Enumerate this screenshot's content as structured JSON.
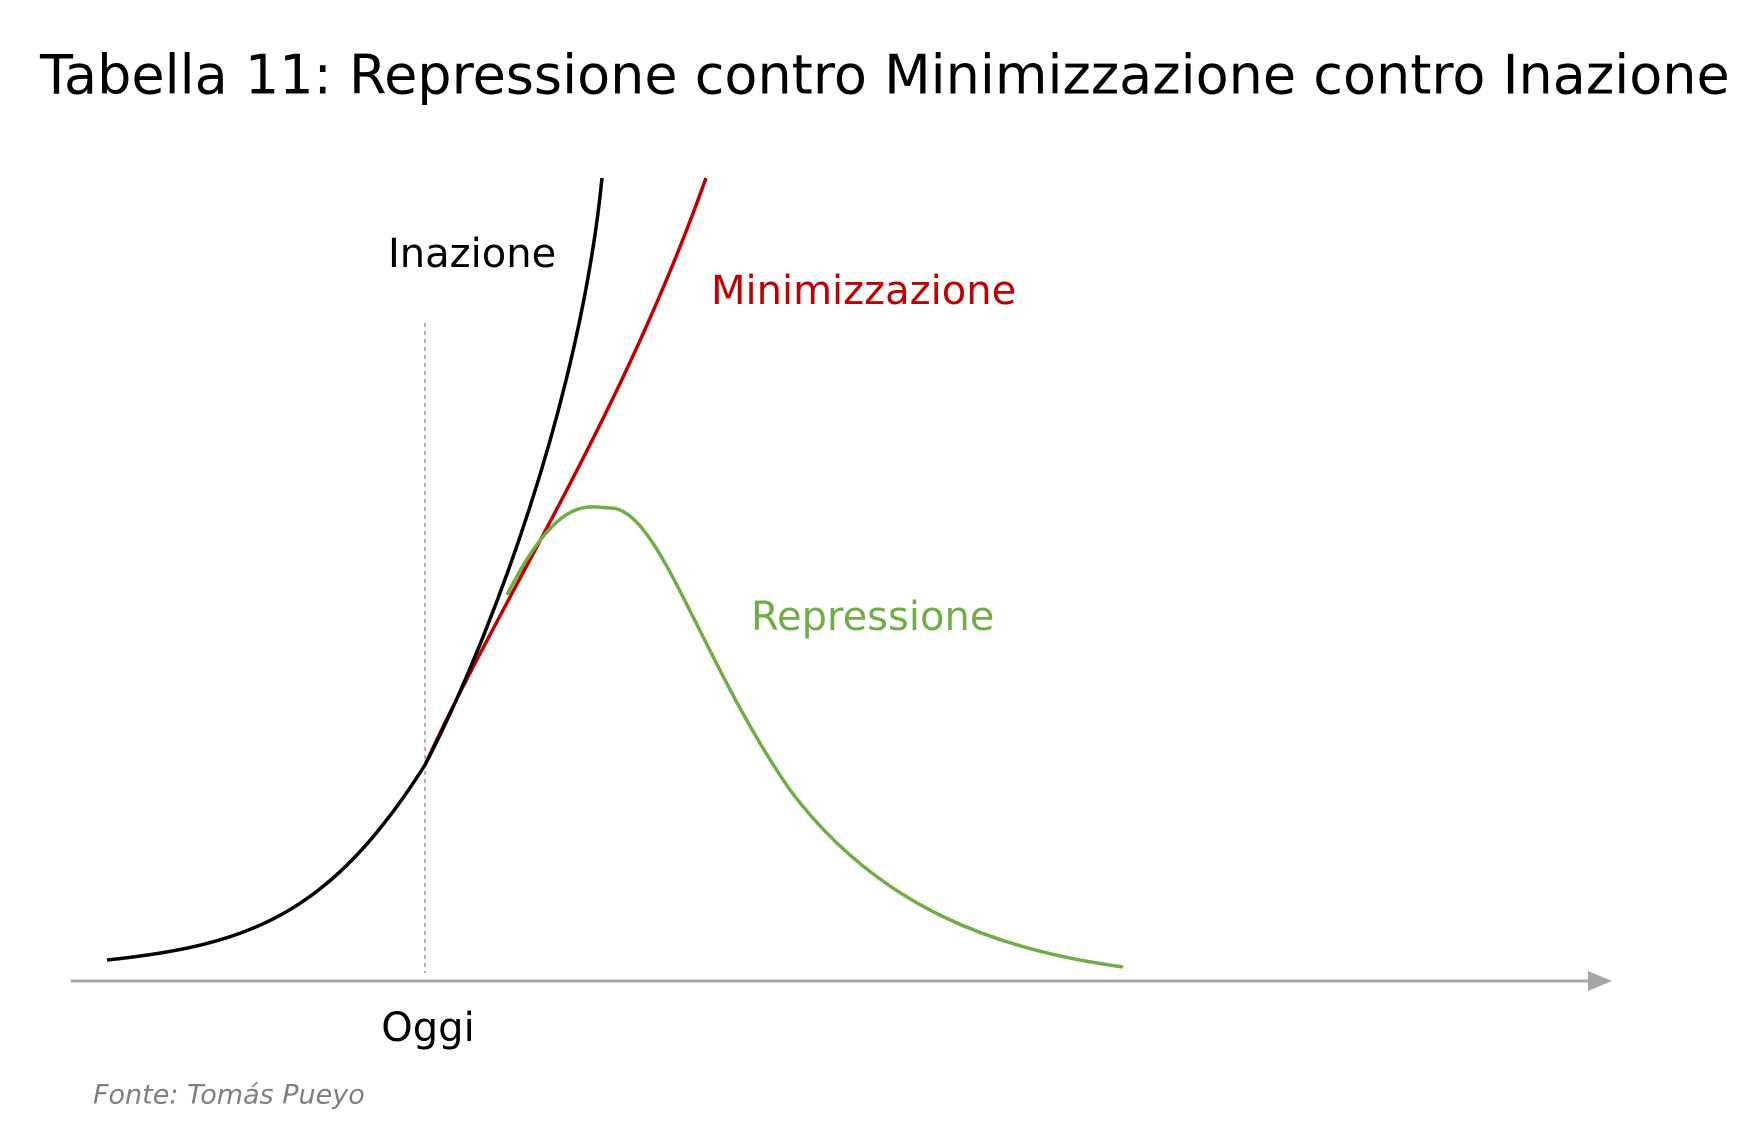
{
  "title": "Tabella 11: Repressione contro Minimizzazione contro Inazione",
  "curves": [
    {
      "label": "Inazione"
    },
    {
      "label": "Minimizzazione"
    },
    {
      "label": "Repressione"
    }
  ],
  "x_axis": {
    "label": "Oggi"
  },
  "source": "Fonte: Tomás Pueyo"
}
